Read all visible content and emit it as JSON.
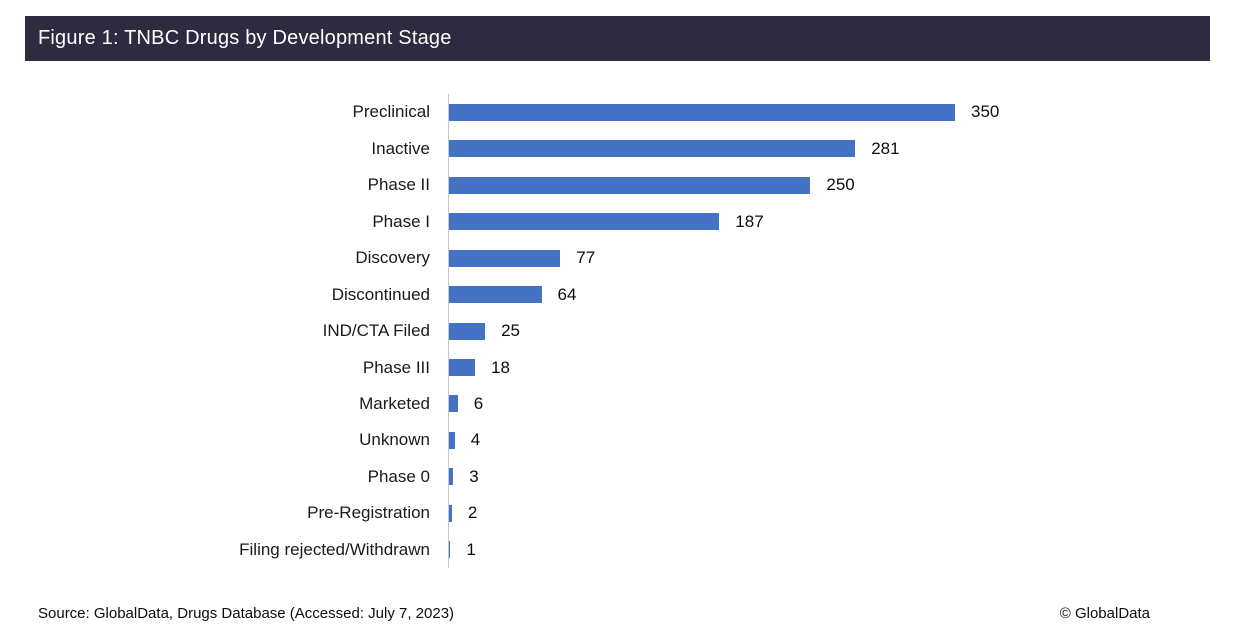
{
  "header": {
    "title": "Figure 1: TNBC Drugs by Development Stage",
    "background": "#2E2A3F",
    "text_color": "#FFFFFF"
  },
  "chart_data": {
    "type": "bar",
    "orientation": "horizontal",
    "title": "Figure 1: TNBC Drugs by Development Stage",
    "categories": [
      "Preclinical",
      "Inactive",
      "Phase II",
      "Phase I",
      "Discovery",
      "Discontinued",
      "IND/CTA Filed",
      "Phase III",
      "Marketed",
      "Unknown",
      "Phase 0",
      "Pre-Registration",
      "Filing rejected/Withdrawn"
    ],
    "values": [
      350,
      281,
      250,
      187,
      77,
      64,
      25,
      18,
      6,
      4,
      3,
      2,
      1
    ],
    "xlabel": "",
    "ylabel": "",
    "xlim": [
      0,
      370
    ],
    "grid": false,
    "legend": "none",
    "value_labels_shown": true,
    "bar_color": "#4472C4",
    "axis_line_color": "#C6C6C6"
  },
  "footer": {
    "source": "Source: GlobalData, Drugs Database (Accessed: July 7, 2023)",
    "copyright": "© GlobalData"
  }
}
